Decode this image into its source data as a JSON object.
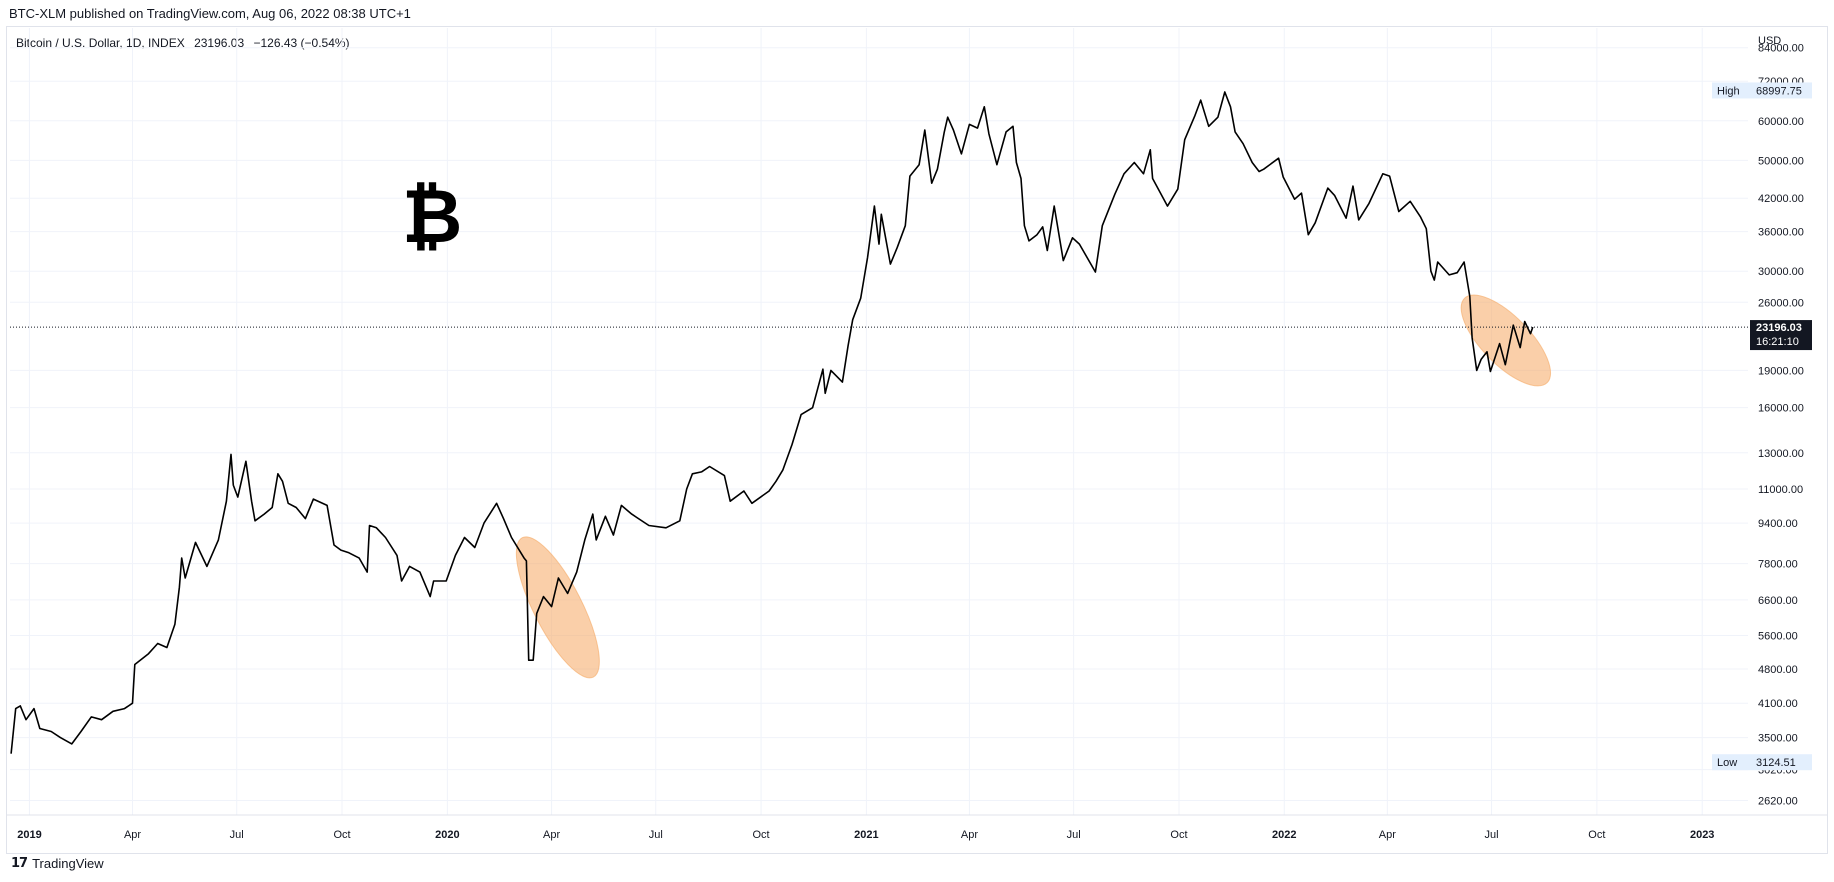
{
  "header": {
    "published_by": "BTC-XLM published on TradingView.com, Aug 06, 2022 08:38 UTC+1"
  },
  "symbol": {
    "name": "Bitcoin / U.S. Dollar, 1D, INDEX",
    "last": "23196.03",
    "change": "−126.43 (−0.54%)"
  },
  "logo_glyph": "₿",
  "footer": {
    "brand": "TradingView",
    "logo": "17"
  },
  "colors": {
    "line": "#000000",
    "highlight": "#f5a863",
    "grid": "#f0f3fa",
    "price_box": "#131722",
    "high_low_box": "#e3effd"
  },
  "chart_data": {
    "type": "line",
    "title": "Bitcoin / U.S. Dollar, 1D, INDEX",
    "scale": "log",
    "y_unit": "USD",
    "ylim": [
      2450,
      92000
    ],
    "xlim": [
      "2018-12-15",
      "2023-02-10"
    ],
    "grid": true,
    "y_ticks": [
      84000,
      72000,
      60000,
      50000,
      42000,
      36000,
      30000,
      26000,
      19000,
      16000,
      13000,
      11000,
      9400,
      7800,
      6600,
      5600,
      4800,
      4100,
      3500,
      3020,
      2620
    ],
    "y_tick_labels": [
      "84000.00",
      "72000.00",
      "60000.00",
      "50000.00",
      "42000.00",
      "36000.00",
      "30000.00",
      "26000.00",
      "19000.00",
      "16000.00",
      "13000.00",
      "11000.00",
      "9400.00",
      "7800.00",
      "6600.00",
      "5600.00",
      "4800.00",
      "4100.00",
      "3500.00",
      "3020.00",
      "2620.00"
    ],
    "x_ticks": [
      {
        "date": "2019-01-01",
        "label": "2019",
        "year": true
      },
      {
        "date": "2019-04-01",
        "label": "Apr"
      },
      {
        "date": "2019-07-01",
        "label": "Jul"
      },
      {
        "date": "2019-10-01",
        "label": "Oct"
      },
      {
        "date": "2020-01-01",
        "label": "2020",
        "year": true
      },
      {
        "date": "2020-04-01",
        "label": "Apr"
      },
      {
        "date": "2020-07-01",
        "label": "Jul"
      },
      {
        "date": "2020-10-01",
        "label": "Oct"
      },
      {
        "date": "2021-01-01",
        "label": "2021",
        "year": true
      },
      {
        "date": "2021-04-01",
        "label": "Apr"
      },
      {
        "date": "2021-07-01",
        "label": "Jul"
      },
      {
        "date": "2021-10-01",
        "label": "Oct"
      },
      {
        "date": "2022-01-01",
        "label": "2022",
        "year": true
      },
      {
        "date": "2022-04-01",
        "label": "Apr"
      },
      {
        "date": "2022-07-01",
        "label": "Jul"
      },
      {
        "date": "2022-10-01",
        "label": "Oct"
      },
      {
        "date": "2023-01-01",
        "label": "2023",
        "year": true
      }
    ],
    "series": [
      {
        "points": [
          [
            "2018-12-16",
            3250
          ],
          [
            "2018-12-20",
            4000
          ],
          [
            "2018-12-24",
            4050
          ],
          [
            "2018-12-29",
            3800
          ],
          [
            "2019-01-05",
            4000
          ],
          [
            "2019-01-10",
            3650
          ],
          [
            "2019-01-20",
            3600
          ],
          [
            "2019-01-28",
            3500
          ],
          [
            "2019-02-07",
            3400
          ],
          [
            "2019-02-15",
            3600
          ],
          [
            "2019-02-24",
            3850
          ],
          [
            "2019-03-05",
            3800
          ],
          [
            "2019-03-15",
            3950
          ],
          [
            "2019-03-25",
            4000
          ],
          [
            "2019-04-01",
            4100
          ],
          [
            "2019-04-03",
            4900
          ],
          [
            "2019-04-15",
            5150
          ],
          [
            "2019-04-23",
            5400
          ],
          [
            "2019-05-01",
            5300
          ],
          [
            "2019-05-08",
            5900
          ],
          [
            "2019-05-12",
            7000
          ],
          [
            "2019-05-14",
            8000
          ],
          [
            "2019-05-17",
            7300
          ],
          [
            "2019-05-26",
            8600
          ],
          [
            "2019-06-05",
            7700
          ],
          [
            "2019-06-15",
            8700
          ],
          [
            "2019-06-22",
            10400
          ],
          [
            "2019-06-26",
            12900
          ],
          [
            "2019-06-28",
            11200
          ],
          [
            "2019-07-02",
            10600
          ],
          [
            "2019-07-09",
            12500
          ],
          [
            "2019-07-14",
            10400
          ],
          [
            "2019-07-17",
            9500
          ],
          [
            "2019-07-25",
            9800
          ],
          [
            "2019-08-01",
            10100
          ],
          [
            "2019-08-06",
            11800
          ],
          [
            "2019-08-10",
            11400
          ],
          [
            "2019-08-15",
            10300
          ],
          [
            "2019-08-22",
            10100
          ],
          [
            "2019-08-30",
            9600
          ],
          [
            "2019-09-06",
            10500
          ],
          [
            "2019-09-18",
            10200
          ],
          [
            "2019-09-24",
            8500
          ],
          [
            "2019-09-30",
            8300
          ],
          [
            "2019-10-07",
            8200
          ],
          [
            "2019-10-16",
            8000
          ],
          [
            "2019-10-23",
            7500
          ],
          [
            "2019-10-25",
            9300
          ],
          [
            "2019-10-31",
            9200
          ],
          [
            "2019-11-08",
            8800
          ],
          [
            "2019-11-18",
            8100
          ],
          [
            "2019-11-22",
            7200
          ],
          [
            "2019-11-29",
            7700
          ],
          [
            "2019-12-08",
            7500
          ],
          [
            "2019-12-17",
            6700
          ],
          [
            "2019-12-20",
            7200
          ],
          [
            "2019-12-31",
            7200
          ],
          [
            "2020-01-08",
            8100
          ],
          [
            "2020-01-16",
            8800
          ],
          [
            "2020-01-25",
            8400
          ],
          [
            "2020-02-02",
            9400
          ],
          [
            "2020-02-13",
            10300
          ],
          [
            "2020-02-19",
            9600
          ],
          [
            "2020-02-26",
            8800
          ],
          [
            "2020-03-08",
            8000
          ],
          [
            "2020-03-10",
            7900
          ],
          [
            "2020-03-12",
            5000
          ],
          [
            "2020-03-16",
            5000
          ],
          [
            "2020-03-19",
            6200
          ],
          [
            "2020-03-25",
            6700
          ],
          [
            "2020-04-01",
            6400
          ],
          [
            "2020-04-07",
            7300
          ],
          [
            "2020-04-15",
            6800
          ],
          [
            "2020-04-23",
            7500
          ],
          [
            "2020-04-30",
            8700
          ],
          [
            "2020-05-07",
            9800
          ],
          [
            "2020-05-10",
            8700
          ],
          [
            "2020-05-18",
            9700
          ],
          [
            "2020-05-25",
            8900
          ],
          [
            "2020-06-01",
            10200
          ],
          [
            "2020-06-10",
            9800
          ],
          [
            "2020-06-25",
            9300
          ],
          [
            "2020-07-10",
            9200
          ],
          [
            "2020-07-22",
            9500
          ],
          [
            "2020-07-28",
            11000
          ],
          [
            "2020-08-02",
            11800
          ],
          [
            "2020-08-10",
            11900
          ],
          [
            "2020-08-17",
            12200
          ],
          [
            "2020-08-30",
            11700
          ],
          [
            "2020-09-04",
            10400
          ],
          [
            "2020-09-16",
            10900
          ],
          [
            "2020-09-23",
            10300
          ],
          [
            "2020-10-08",
            10900
          ],
          [
            "2020-10-14",
            11400
          ],
          [
            "2020-10-20",
            12000
          ],
          [
            "2020-10-28",
            13500
          ],
          [
            "2020-11-05",
            15500
          ],
          [
            "2020-11-15",
            16000
          ],
          [
            "2020-11-24",
            19100
          ],
          [
            "2020-11-26",
            17100
          ],
          [
            "2020-12-01",
            19000
          ],
          [
            "2020-12-11",
            18000
          ],
          [
            "2020-12-16",
            21300
          ],
          [
            "2020-12-20",
            24000
          ],
          [
            "2020-12-27",
            26500
          ],
          [
            "2021-01-02",
            32000
          ],
          [
            "2021-01-08",
            40500
          ],
          [
            "2021-01-12",
            34000
          ],
          [
            "2021-01-14",
            39000
          ],
          [
            "2021-01-22",
            31000
          ],
          [
            "2021-01-28",
            33500
          ],
          [
            "2021-02-04",
            37000
          ],
          [
            "2021-02-08",
            46500
          ],
          [
            "2021-02-16",
            49000
          ],
          [
            "2021-02-21",
            57500
          ],
          [
            "2021-02-27",
            45000
          ],
          [
            "2021-03-04",
            48000
          ],
          [
            "2021-03-10",
            57000
          ],
          [
            "2021-03-13",
            61000
          ],
          [
            "2021-03-18",
            57500
          ],
          [
            "2021-03-25",
            51500
          ],
          [
            "2021-04-01",
            59000
          ],
          [
            "2021-04-08",
            58000
          ],
          [
            "2021-04-14",
            64000
          ],
          [
            "2021-04-18",
            56500
          ],
          [
            "2021-04-25",
            49000
          ],
          [
            "2021-05-03",
            57000
          ],
          [
            "2021-05-09",
            58500
          ],
          [
            "2021-05-12",
            49500
          ],
          [
            "2021-05-16",
            46000
          ],
          [
            "2021-05-19",
            37000
          ],
          [
            "2021-05-23",
            34500
          ],
          [
            "2021-05-30",
            35500
          ],
          [
            "2021-06-04",
            36800
          ],
          [
            "2021-06-08",
            33000
          ],
          [
            "2021-06-14",
            40500
          ],
          [
            "2021-06-22",
            31500
          ],
          [
            "2021-06-30",
            35000
          ],
          [
            "2021-07-06",
            34000
          ],
          [
            "2021-07-20",
            29900
          ],
          [
            "2021-07-26",
            37000
          ],
          [
            "2021-08-06",
            42800
          ],
          [
            "2021-08-14",
            47000
          ],
          [
            "2021-08-23",
            49500
          ],
          [
            "2021-08-31",
            47000
          ],
          [
            "2021-09-06",
            52500
          ],
          [
            "2021-09-08",
            46000
          ],
          [
            "2021-09-21",
            40500
          ],
          [
            "2021-09-30",
            43800
          ],
          [
            "2021-10-06",
            55000
          ],
          [
            "2021-10-15",
            61500
          ],
          [
            "2021-10-20",
            66000
          ],
          [
            "2021-10-27",
            58500
          ],
          [
            "2021-11-04",
            61000
          ],
          [
            "2021-11-10",
            68500
          ],
          [
            "2021-11-15",
            64000
          ],
          [
            "2021-11-19",
            57000
          ],
          [
            "2021-11-26",
            54000
          ],
          [
            "2021-12-04",
            49500
          ],
          [
            "2021-12-10",
            47500
          ],
          [
            "2021-12-14",
            48000
          ],
          [
            "2021-12-27",
            50500
          ],
          [
            "2021-12-31",
            46300
          ],
          [
            "2022-01-10",
            41800
          ],
          [
            "2022-01-16",
            43000
          ],
          [
            "2022-01-22",
            35500
          ],
          [
            "2022-01-28",
            37500
          ],
          [
            "2022-02-08",
            44000
          ],
          [
            "2022-02-14",
            42500
          ],
          [
            "2022-02-24",
            38300
          ],
          [
            "2022-03-02",
            44400
          ],
          [
            "2022-03-07",
            38000
          ],
          [
            "2022-03-16",
            41000
          ],
          [
            "2022-03-28",
            47000
          ],
          [
            "2022-04-03",
            46500
          ],
          [
            "2022-04-11",
            39500
          ],
          [
            "2022-04-21",
            41400
          ],
          [
            "2022-04-30",
            38500
          ],
          [
            "2022-05-05",
            36500
          ],
          [
            "2022-05-09",
            30000
          ],
          [
            "2022-05-12",
            28800
          ],
          [
            "2022-05-15",
            31300
          ],
          [
            "2022-05-25",
            29500
          ],
          [
            "2022-06-01",
            29800
          ],
          [
            "2022-06-07",
            31300
          ],
          [
            "2022-06-12",
            26700
          ],
          [
            "2022-06-14",
            22100
          ],
          [
            "2022-06-18",
            19000
          ],
          [
            "2022-06-22",
            20000
          ],
          [
            "2022-06-27",
            20700
          ],
          [
            "2022-06-30",
            18900
          ],
          [
            "2022-07-08",
            21500
          ],
          [
            "2022-07-13",
            19500
          ],
          [
            "2022-07-20",
            23400
          ],
          [
            "2022-07-26",
            21100
          ],
          [
            "2022-07-30",
            23800
          ],
          [
            "2022-08-04",
            22500
          ],
          [
            "2022-08-06",
            23196
          ]
        ]
      }
    ],
    "annotations": {
      "high_label": "High",
      "high_value": "68997.75",
      "high": 68997.75,
      "low_label": "Low",
      "low_value": "3124.51",
      "low": 3124.51,
      "last_price": "23196.03",
      "last": 23196.03,
      "countdown": "16:21:10",
      "highlights": [
        {
          "start": "2020-03-12",
          "end": "2020-05-02",
          "low": 4900,
          "high": 8300
        },
        {
          "start": "2022-06-16",
          "end": "2022-08-10",
          "low": 18800,
          "high": 25300
        }
      ]
    }
  }
}
